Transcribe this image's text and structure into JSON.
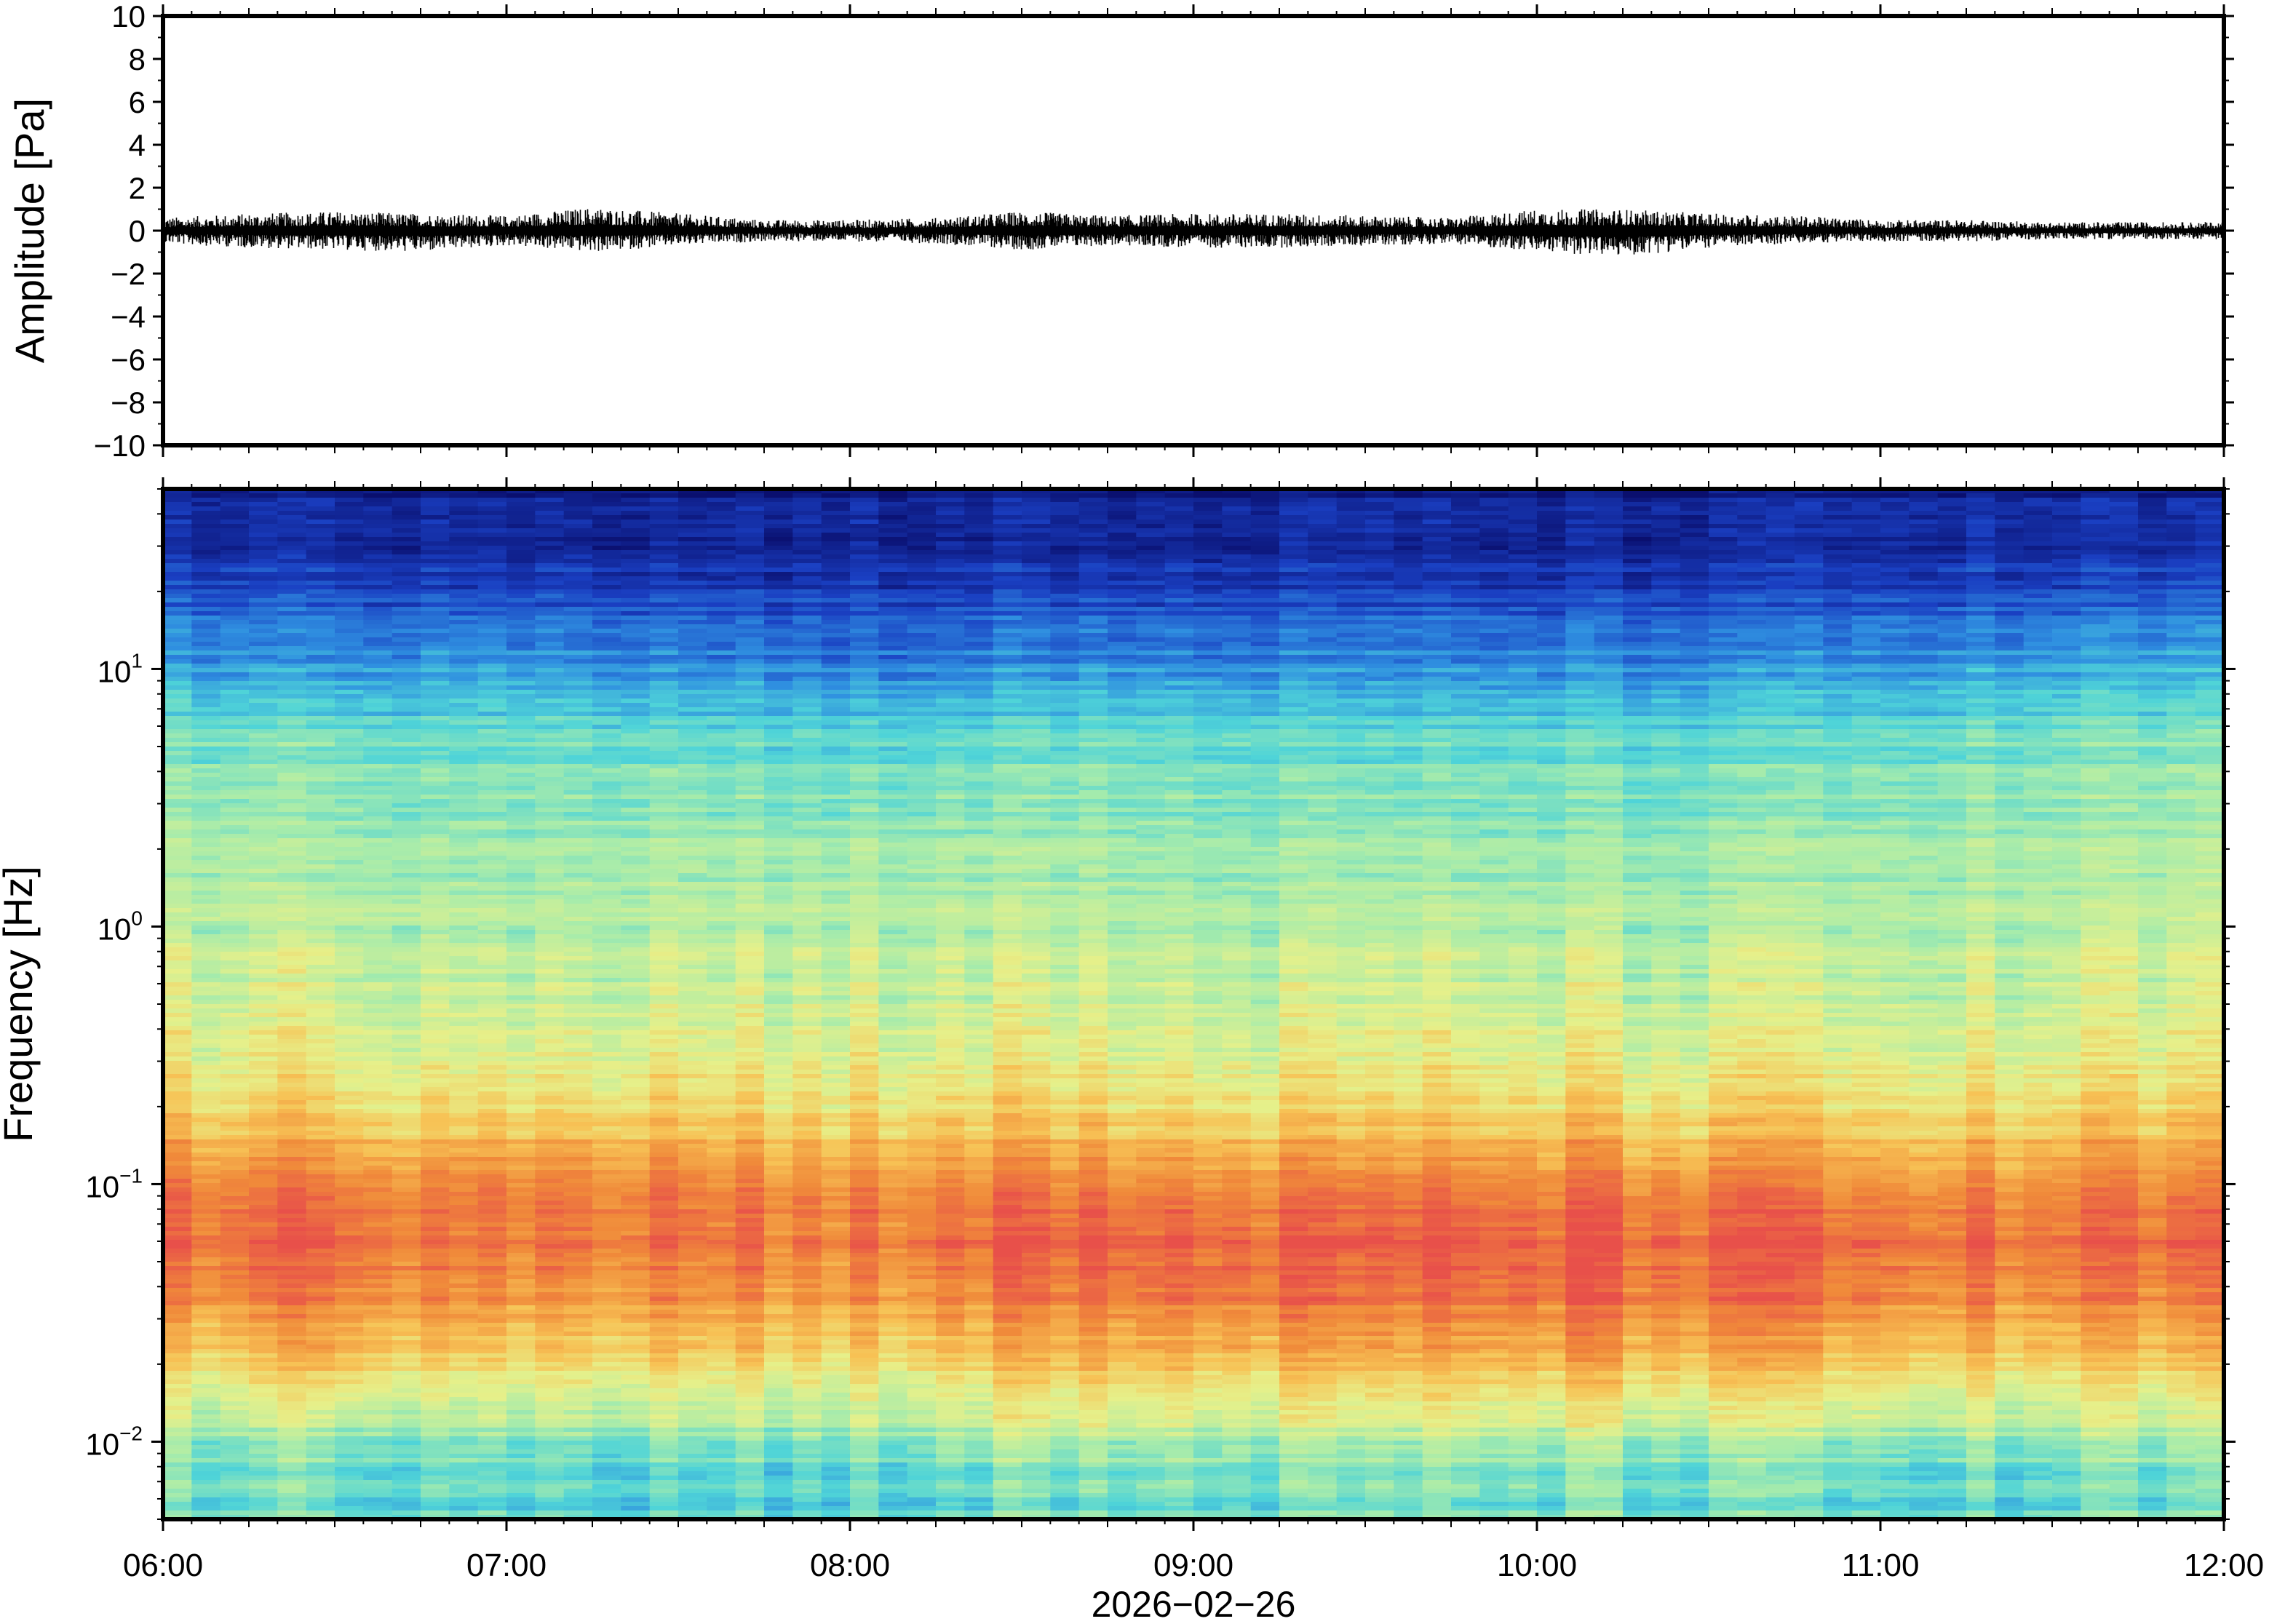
{
  "chart_data": [
    {
      "type": "line",
      "panel": "waveform",
      "ylabel": "Amplitude [Pa]",
      "ylim": [
        -10,
        10
      ],
      "yticks": [
        "10",
        "8",
        "6",
        "4",
        "2",
        "0",
        "−2",
        "−4",
        "−6",
        "−8",
        "−10"
      ],
      "ytick_values": [
        10,
        8,
        6,
        4,
        2,
        0,
        -2,
        -4,
        -6,
        -8,
        -10
      ],
      "xlim": [
        "06:00",
        "12:00"
      ],
      "envelope": {
        "x": [
          "06:00",
          "06:15",
          "06:30",
          "06:45",
          "07:00",
          "07:15",
          "07:30",
          "07:45",
          "08:00",
          "08:15",
          "08:30",
          "08:45",
          "09:00",
          "09:15",
          "09:30",
          "09:45",
          "10:00",
          "10:15",
          "10:30",
          "10:45",
          "11:00",
          "11:15",
          "11:30",
          "11:45",
          "12:00"
        ],
        "peak": [
          0.6,
          0.8,
          0.9,
          0.8,
          0.7,
          1.1,
          0.8,
          0.5,
          0.5,
          0.6,
          0.9,
          0.7,
          0.8,
          0.8,
          0.7,
          0.6,
          1.0,
          1.0,
          0.8,
          0.7,
          0.5,
          0.5,
          0.4,
          0.4,
          0.4
        ],
        "trough": [
          -0.6,
          -0.8,
          -0.9,
          -1.0,
          -0.7,
          -1.0,
          -0.7,
          -0.5,
          -0.5,
          -0.6,
          -0.9,
          -0.7,
          -0.8,
          -0.8,
          -0.7,
          -0.6,
          -1.0,
          -1.2,
          -0.8,
          -0.6,
          -0.5,
          -0.5,
          -0.4,
          -0.4,
          -0.4
        ]
      }
    },
    {
      "type": "heatmap",
      "panel": "spectrogram",
      "ylabel": "Frequency [Hz]",
      "yscale": "log",
      "ylim": [
        0.005,
        50
      ],
      "yticks": [
        {
          "value": 10,
          "base": "10",
          "exp": "1"
        },
        {
          "value": 1,
          "base": "10",
          "exp": "0"
        },
        {
          "value": 0.1,
          "base": "10",
          "exp": "−1"
        },
        {
          "value": 0.01,
          "base": "10",
          "exp": "−2"
        }
      ],
      "xlim": [
        "06:00",
        "12:00"
      ],
      "xticks": [
        "06:00",
        "07:00",
        "08:00",
        "09:00",
        "10:00",
        "11:00",
        "12:00"
      ],
      "xlabel": "2026−02−26",
      "colormap": [
        "#0a0f6e",
        "#1a3fc2",
        "#2f8fe0",
        "#4fd4d8",
        "#a9ecaa",
        "#e6f08a",
        "#f7c255",
        "#f08a3a",
        "#e8504a"
      ],
      "time_hours": [
        6.0,
        6.5,
        7.0,
        7.5,
        8.0,
        8.5,
        9.0,
        9.5,
        10.0,
        10.5,
        11.0,
        11.5,
        12.0
      ],
      "freq_hz": [
        0.007,
        0.01,
        0.02,
        0.04,
        0.06,
        0.1,
        0.2,
        0.5,
        1,
        2,
        5,
        10,
        20,
        40
      ],
      "relative_power": [
        [
          0.45,
          0.5,
          0.7,
          0.9,
          0.95,
          0.92,
          0.72,
          0.6,
          0.56,
          0.52,
          0.45,
          0.3,
          0.16,
          0.05
        ],
        [
          0.42,
          0.48,
          0.75,
          0.92,
          0.95,
          0.9,
          0.7,
          0.58,
          0.55,
          0.5,
          0.44,
          0.28,
          0.14,
          0.05
        ],
        [
          0.44,
          0.5,
          0.72,
          0.9,
          0.94,
          0.93,
          0.72,
          0.6,
          0.55,
          0.5,
          0.44,
          0.3,
          0.15,
          0.05
        ],
        [
          0.38,
          0.46,
          0.7,
          0.88,
          0.92,
          0.9,
          0.7,
          0.58,
          0.54,
          0.5,
          0.42,
          0.26,
          0.12,
          0.04
        ],
        [
          0.4,
          0.48,
          0.68,
          0.86,
          0.9,
          0.88,
          0.68,
          0.58,
          0.54,
          0.5,
          0.4,
          0.24,
          0.12,
          0.04
        ],
        [
          0.42,
          0.52,
          0.74,
          0.92,
          0.96,
          0.9,
          0.7,
          0.58,
          0.54,
          0.5,
          0.42,
          0.26,
          0.12,
          0.04
        ],
        [
          0.44,
          0.52,
          0.76,
          0.94,
          0.95,
          0.88,
          0.68,
          0.56,
          0.52,
          0.48,
          0.42,
          0.26,
          0.12,
          0.04
        ],
        [
          0.42,
          0.5,
          0.74,
          0.92,
          0.94,
          0.88,
          0.68,
          0.56,
          0.52,
          0.48,
          0.4,
          0.25,
          0.12,
          0.04
        ],
        [
          0.44,
          0.54,
          0.78,
          0.95,
          0.97,
          0.9,
          0.7,
          0.58,
          0.54,
          0.48,
          0.42,
          0.26,
          0.12,
          0.04
        ],
        [
          0.42,
          0.5,
          0.76,
          0.94,
          0.95,
          0.88,
          0.68,
          0.56,
          0.52,
          0.48,
          0.4,
          0.26,
          0.12,
          0.04
        ],
        [
          0.4,
          0.48,
          0.72,
          0.9,
          0.93,
          0.86,
          0.68,
          0.56,
          0.52,
          0.5,
          0.42,
          0.28,
          0.13,
          0.05
        ],
        [
          0.4,
          0.48,
          0.7,
          0.88,
          0.92,
          0.86,
          0.68,
          0.56,
          0.54,
          0.5,
          0.44,
          0.3,
          0.14,
          0.05
        ],
        [
          0.42,
          0.5,
          0.72,
          0.9,
          0.93,
          0.88,
          0.7,
          0.58,
          0.56,
          0.52,
          0.46,
          0.32,
          0.15,
          0.05
        ]
      ]
    }
  ]
}
